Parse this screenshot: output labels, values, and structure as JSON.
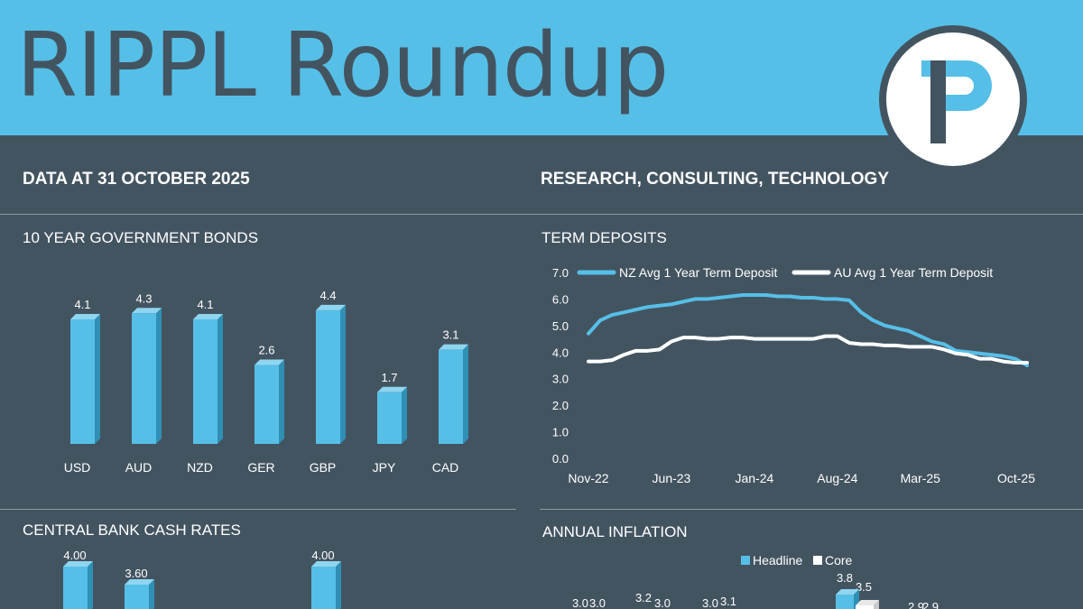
{
  "header": {
    "title": "RIPPL Roundup",
    "date_line": "DATA AT 31 OCTOBER 2025",
    "tagline": "RESEARCH, CONSULTING, TECHNOLOGY"
  },
  "colors": {
    "banner": "#56BFE7",
    "background": "#435461",
    "bar": "#56BFE7",
    "white": "#FFFFFF"
  },
  "sections": {
    "bonds": "10 YEAR GOVERNMENT BONDS",
    "deposits": "TERM DEPOSITS",
    "cash": "CENTRAL BANK CASH RATES",
    "inflation": "ANNUAL INFLATION"
  },
  "chart_data": [
    {
      "id": "bonds",
      "type": "bar",
      "title": "10 YEAR GOVERNMENT BONDS",
      "categories": [
        "USD",
        "AUD",
        "NZD",
        "GER",
        "GBP",
        "JPY",
        "CAD"
      ],
      "values": [
        4.1,
        4.3,
        4.1,
        2.6,
        4.4,
        1.7,
        3.1
      ],
      "value_labels": [
        "4.1",
        "4.3",
        "4.1",
        "2.6",
        "4.4",
        "1.7",
        "3.1"
      ]
    },
    {
      "id": "deposits",
      "type": "line",
      "title": "TERM DEPOSITS",
      "x_ticks": [
        "Nov-22",
        "Jun-23",
        "Jan-24",
        "Aug-24",
        "Mar-25",
        "Oct-25"
      ],
      "y_ticks": [
        "0.0",
        "1.0",
        "2.0",
        "3.0",
        "4.0",
        "5.0",
        "6.0",
        "7.0"
      ],
      "ylim": [
        0,
        7
      ],
      "legend": "top",
      "series": [
        {
          "name": "NZ Avg 1 Year Term Deposit",
          "color": "#56BFE7",
          "values": [
            4.7,
            5.2,
            5.4,
            5.5,
            5.6,
            5.7,
            5.75,
            5.8,
            5.9,
            6.0,
            6.0,
            6.05,
            6.1,
            6.15,
            6.15,
            6.15,
            6.1,
            6.1,
            6.05,
            6.05,
            6.0,
            6.0,
            5.95,
            5.5,
            5.2,
            5.0,
            4.9,
            4.8,
            4.6,
            4.4,
            4.3,
            4.05,
            4.0,
            3.95,
            3.9,
            3.85,
            3.75,
            3.5
          ]
        },
        {
          "name": "AU Avg 1 Year Term Deposit",
          "color": "#FFFFFF",
          "values": [
            3.65,
            3.65,
            3.7,
            3.9,
            4.05,
            4.05,
            4.1,
            4.4,
            4.55,
            4.55,
            4.5,
            4.5,
            4.55,
            4.55,
            4.5,
            4.5,
            4.5,
            4.5,
            4.5,
            4.5,
            4.6,
            4.6,
            4.35,
            4.3,
            4.3,
            4.25,
            4.25,
            4.2,
            4.2,
            4.2,
            4.1,
            3.95,
            3.9,
            3.75,
            3.75,
            3.65,
            3.6,
            3.6
          ]
        }
      ]
    },
    {
      "id": "cash",
      "type": "bar",
      "title": "CENTRAL BANK CASH RATES",
      "visible_value_labels": [
        "4.00",
        "3.60",
        "4.00"
      ],
      "values": [
        4.0,
        3.6,
        4.0
      ],
      "slots": [
        0,
        1,
        4
      ]
    },
    {
      "id": "inflation",
      "type": "bar",
      "title": "ANNUAL INFLATION",
      "legend": "top",
      "series_names": [
        "Headline",
        "Core"
      ],
      "visible_value_labels": [
        "3.0",
        "3.0",
        "3.2",
        "3.0",
        "3.0",
        "3.1",
        "3.8",
        "3.5",
        "2.9",
        "2.9"
      ]
    }
  ]
}
